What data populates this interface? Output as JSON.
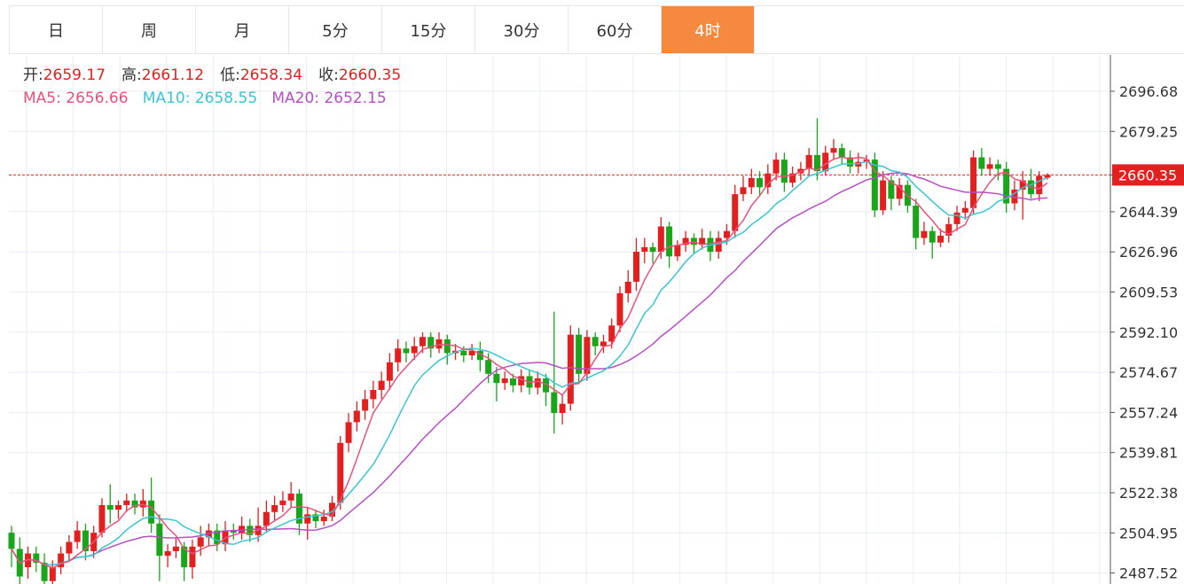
{
  "tabs": [
    {
      "label": "日",
      "active": false
    },
    {
      "label": "周",
      "active": false
    },
    {
      "label": "月",
      "active": false
    },
    {
      "label": "5分",
      "active": false
    },
    {
      "label": "15分",
      "active": false
    },
    {
      "label": "30分",
      "active": false
    },
    {
      "label": "60分",
      "active": false
    },
    {
      "label": "4时",
      "active": true
    }
  ],
  "ohlc": {
    "open_label": "开:",
    "open": "2659.17",
    "high_label": "高:",
    "high": "2661.12",
    "low_label": "低:",
    "low": "2658.34",
    "close_label": "收:",
    "close": "2660.35"
  },
  "ma": {
    "ma5_label": "MA5:",
    "ma5": "2656.66",
    "ma10_label": "MA10:",
    "ma10": "2658.55",
    "ma20_label": "MA20:",
    "ma20": "2652.15"
  },
  "colors": {
    "up": "#e32020",
    "down": "#1aa51a",
    "ma5": "#e9517a",
    "ma10": "#39c6d2",
    "ma20": "#b64fc4",
    "accent": "#f4893f"
  },
  "chart_data": {
    "type": "candlestick",
    "y_ticks": [
      "2696.68",
      "2679.25",
      "2660.35",
      "2644.39",
      "2626.96",
      "2609.53",
      "2592.10",
      "2574.67",
      "2557.24",
      "2539.81",
      "2522.38",
      "2504.95",
      "2487.52"
    ],
    "current_price": "2660.35",
    "grid": true,
    "candles": [
      {
        "o": 2505,
        "c": 2498,
        "h": 2508,
        "l": 2490
      },
      {
        "o": 2498,
        "c": 2486,
        "h": 2503,
        "l": 2482
      },
      {
        "o": 2490,
        "c": 2496,
        "h": 2499,
        "l": 2485
      },
      {
        "o": 2496,
        "c": 2492,
        "h": 2499,
        "l": 2488
      },
      {
        "o": 2492,
        "c": 2484,
        "h": 2496,
        "l": 2478
      },
      {
        "o": 2484,
        "c": 2490,
        "h": 2493,
        "l": 2480
      },
      {
        "o": 2490,
        "c": 2496,
        "h": 2499,
        "l": 2487
      },
      {
        "o": 2496,
        "c": 2501,
        "h": 2504,
        "l": 2493
      },
      {
        "o": 2501,
        "c": 2506,
        "h": 2510,
        "l": 2498
      },
      {
        "o": 2506,
        "c": 2497,
        "h": 2509,
        "l": 2493
      },
      {
        "o": 2497,
        "c": 2505,
        "h": 2508,
        "l": 2494
      },
      {
        "o": 2505,
        "c": 2517,
        "h": 2520,
        "l": 2503
      },
      {
        "o": 2517,
        "c": 2515,
        "h": 2526,
        "l": 2509
      },
      {
        "o": 2515,
        "c": 2517,
        "h": 2519,
        "l": 2511
      },
      {
        "o": 2517,
        "c": 2519,
        "h": 2522,
        "l": 2514
      },
      {
        "o": 2519,
        "c": 2516,
        "h": 2522,
        "l": 2513
      },
      {
        "o": 2516,
        "c": 2519,
        "h": 2524,
        "l": 2512
      },
      {
        "o": 2519,
        "c": 2509,
        "h": 2529,
        "l": 2505
      },
      {
        "o": 2509,
        "c": 2495,
        "h": 2513,
        "l": 2484
      },
      {
        "o": 2495,
        "c": 2497,
        "h": 2500,
        "l": 2490
      },
      {
        "o": 2497,
        "c": 2499,
        "h": 2503,
        "l": 2494
      },
      {
        "o": 2499,
        "c": 2490,
        "h": 2501,
        "l": 2484
      },
      {
        "o": 2490,
        "c": 2499,
        "h": 2502,
        "l": 2485
      },
      {
        "o": 2499,
        "c": 2503,
        "h": 2508,
        "l": 2495
      },
      {
        "o": 2503,
        "c": 2506,
        "h": 2509,
        "l": 2499
      },
      {
        "o": 2506,
        "c": 2500,
        "h": 2509,
        "l": 2497
      },
      {
        "o": 2500,
        "c": 2506,
        "h": 2510,
        "l": 2497
      },
      {
        "o": 2506,
        "c": 2505,
        "h": 2509,
        "l": 2502
      },
      {
        "o": 2505,
        "c": 2508,
        "h": 2512,
        "l": 2502
      },
      {
        "o": 2508,
        "c": 2504,
        "h": 2511,
        "l": 2501
      },
      {
        "o": 2504,
        "c": 2508,
        "h": 2516,
        "l": 2501
      },
      {
        "o": 2508,
        "c": 2514,
        "h": 2519,
        "l": 2505
      },
      {
        "o": 2514,
        "c": 2517,
        "h": 2521,
        "l": 2510
      },
      {
        "o": 2517,
        "c": 2519,
        "h": 2523,
        "l": 2514
      },
      {
        "o": 2519,
        "c": 2522,
        "h": 2527,
        "l": 2516
      },
      {
        "o": 2522,
        "c": 2509,
        "h": 2524,
        "l": 2504
      },
      {
        "o": 2509,
        "c": 2513,
        "h": 2516,
        "l": 2502
      },
      {
        "o": 2513,
        "c": 2510,
        "h": 2515,
        "l": 2507
      },
      {
        "o": 2510,
        "c": 2512,
        "h": 2515,
        "l": 2508
      },
      {
        "o": 2512,
        "c": 2518,
        "h": 2521,
        "l": 2510
      },
      {
        "o": 2518,
        "c": 2544,
        "h": 2547,
        "l": 2515
      },
      {
        "o": 2544,
        "c": 2553,
        "h": 2557,
        "l": 2540
      },
      {
        "o": 2553,
        "c": 2558,
        "h": 2562,
        "l": 2549
      },
      {
        "o": 2558,
        "c": 2563,
        "h": 2567,
        "l": 2554
      },
      {
        "o": 2563,
        "c": 2567,
        "h": 2571,
        "l": 2559
      },
      {
        "o": 2567,
        "c": 2571,
        "h": 2575,
        "l": 2563
      },
      {
        "o": 2571,
        "c": 2579,
        "h": 2583,
        "l": 2567
      },
      {
        "o": 2579,
        "c": 2585,
        "h": 2589,
        "l": 2575
      },
      {
        "o": 2585,
        "c": 2583,
        "h": 2588,
        "l": 2579
      },
      {
        "o": 2583,
        "c": 2586,
        "h": 2590,
        "l": 2580
      },
      {
        "o": 2586,
        "c": 2590,
        "h": 2592,
        "l": 2583
      },
      {
        "o": 2590,
        "c": 2585,
        "h": 2592,
        "l": 2581
      },
      {
        "o": 2585,
        "c": 2589,
        "h": 2592,
        "l": 2583
      },
      {
        "o": 2589,
        "c": 2583,
        "h": 2591,
        "l": 2578
      },
      {
        "o": 2583,
        "c": 2584,
        "h": 2587,
        "l": 2580
      },
      {
        "o": 2584,
        "c": 2582,
        "h": 2586,
        "l": 2579
      },
      {
        "o": 2582,
        "c": 2584,
        "h": 2587,
        "l": 2580
      },
      {
        "o": 2584,
        "c": 2580,
        "h": 2588,
        "l": 2575
      },
      {
        "o": 2580,
        "c": 2574,
        "h": 2583,
        "l": 2570
      },
      {
        "o": 2574,
        "c": 2570,
        "h": 2577,
        "l": 2562
      },
      {
        "o": 2570,
        "c": 2572,
        "h": 2575,
        "l": 2567
      },
      {
        "o": 2572,
        "c": 2569,
        "h": 2574,
        "l": 2566
      },
      {
        "o": 2569,
        "c": 2573,
        "h": 2576,
        "l": 2566
      },
      {
        "o": 2573,
        "c": 2568,
        "h": 2576,
        "l": 2565
      },
      {
        "o": 2568,
        "c": 2572,
        "h": 2575,
        "l": 2565
      },
      {
        "o": 2572,
        "c": 2566,
        "h": 2574,
        "l": 2560
      },
      {
        "o": 2566,
        "c": 2557,
        "h": 2601,
        "l": 2548
      },
      {
        "o": 2557,
        "c": 2561,
        "h": 2565,
        "l": 2552
      },
      {
        "o": 2561,
        "c": 2591,
        "h": 2595,
        "l": 2558
      },
      {
        "o": 2591,
        "c": 2574,
        "h": 2594,
        "l": 2570
      },
      {
        "o": 2574,
        "c": 2590,
        "h": 2593,
        "l": 2571
      },
      {
        "o": 2590,
        "c": 2586,
        "h": 2592,
        "l": 2582
      },
      {
        "o": 2586,
        "c": 2588,
        "h": 2591,
        "l": 2583
      },
      {
        "o": 2588,
        "c": 2595,
        "h": 2598,
        "l": 2585
      },
      {
        "o": 2595,
        "c": 2609,
        "h": 2612,
        "l": 2592
      },
      {
        "o": 2609,
        "c": 2614,
        "h": 2619,
        "l": 2605
      },
      {
        "o": 2614,
        "c": 2627,
        "h": 2633,
        "l": 2610
      },
      {
        "o": 2627,
        "c": 2629,
        "h": 2633,
        "l": 2622
      },
      {
        "o": 2629,
        "c": 2627,
        "h": 2631,
        "l": 2622
      },
      {
        "o": 2627,
        "c": 2638,
        "h": 2642,
        "l": 2624
      },
      {
        "o": 2638,
        "c": 2625,
        "h": 2640,
        "l": 2620
      },
      {
        "o": 2625,
        "c": 2630,
        "h": 2632,
        "l": 2623
      },
      {
        "o": 2630,
        "c": 2633,
        "h": 2636,
        "l": 2627
      },
      {
        "o": 2633,
        "c": 2630,
        "h": 2635,
        "l": 2626
      },
      {
        "o": 2630,
        "c": 2633,
        "h": 2637,
        "l": 2628
      },
      {
        "o": 2633,
        "c": 2627,
        "h": 2636,
        "l": 2623
      },
      {
        "o": 2627,
        "c": 2633,
        "h": 2636,
        "l": 2624
      },
      {
        "o": 2633,
        "c": 2636,
        "h": 2639,
        "l": 2630
      },
      {
        "o": 2636,
        "c": 2652,
        "h": 2656,
        "l": 2633
      },
      {
        "o": 2652,
        "c": 2655,
        "h": 2660,
        "l": 2649
      },
      {
        "o": 2655,
        "c": 2659,
        "h": 2663,
        "l": 2652
      },
      {
        "o": 2659,
        "c": 2655,
        "h": 2662,
        "l": 2651
      },
      {
        "o": 2655,
        "c": 2661,
        "h": 2665,
        "l": 2652
      },
      {
        "o": 2661,
        "c": 2667,
        "h": 2670,
        "l": 2658
      },
      {
        "o": 2667,
        "c": 2657,
        "h": 2670,
        "l": 2653
      },
      {
        "o": 2657,
        "c": 2661,
        "h": 2664,
        "l": 2655
      },
      {
        "o": 2661,
        "c": 2663,
        "h": 2666,
        "l": 2658
      },
      {
        "o": 2663,
        "c": 2669,
        "h": 2672,
        "l": 2660
      },
      {
        "o": 2669,
        "c": 2662,
        "h": 2685,
        "l": 2658
      },
      {
        "o": 2662,
        "c": 2670,
        "h": 2673,
        "l": 2660
      },
      {
        "o": 2670,
        "c": 2672,
        "h": 2676,
        "l": 2667
      },
      {
        "o": 2672,
        "c": 2668,
        "h": 2674,
        "l": 2665
      },
      {
        "o": 2668,
        "c": 2664,
        "h": 2671,
        "l": 2661
      },
      {
        "o": 2664,
        "c": 2666,
        "h": 2670,
        "l": 2661
      },
      {
        "o": 2666,
        "c": 2667,
        "h": 2669,
        "l": 2663
      },
      {
        "o": 2667,
        "c": 2645,
        "h": 2670,
        "l": 2642
      },
      {
        "o": 2645,
        "c": 2658,
        "h": 2662,
        "l": 2643
      },
      {
        "o": 2658,
        "c": 2650,
        "h": 2660,
        "l": 2645
      },
      {
        "o": 2650,
        "c": 2656,
        "h": 2659,
        "l": 2647
      },
      {
        "o": 2656,
        "c": 2647,
        "h": 2658,
        "l": 2644
      },
      {
        "o": 2647,
        "c": 2633,
        "h": 2650,
        "l": 2628
      },
      {
        "o": 2633,
        "c": 2636,
        "h": 2640,
        "l": 2630
      },
      {
        "o": 2636,
        "c": 2631,
        "h": 2638,
        "l": 2624
      },
      {
        "o": 2631,
        "c": 2634,
        "h": 2637,
        "l": 2629
      },
      {
        "o": 2634,
        "c": 2639,
        "h": 2642,
        "l": 2631
      },
      {
        "o": 2639,
        "c": 2644,
        "h": 2647,
        "l": 2636
      },
      {
        "o": 2644,
        "c": 2646,
        "h": 2649,
        "l": 2641
      },
      {
        "o": 2646,
        "c": 2668,
        "h": 2671,
        "l": 2643
      },
      {
        "o": 2668,
        "c": 2663,
        "h": 2672,
        "l": 2660
      },
      {
        "o": 2663,
        "c": 2665,
        "h": 2668,
        "l": 2660
      },
      {
        "o": 2665,
        "c": 2663,
        "h": 2667,
        "l": 2658
      },
      {
        "o": 2663,
        "c": 2648,
        "h": 2666,
        "l": 2644
      },
      {
        "o": 2648,
        "c": 2654,
        "h": 2658,
        "l": 2645
      },
      {
        "o": 2654,
        "c": 2658,
        "h": 2662,
        "l": 2641
      },
      {
        "o": 2658,
        "c": 2652,
        "h": 2663,
        "l": 2650
      },
      {
        "o": 2652,
        "c": 2660,
        "h": 2662,
        "l": 2649
      },
      {
        "o": 2659.17,
        "c": 2660.35,
        "h": 2661.12,
        "l": 2658.34
      }
    ]
  }
}
